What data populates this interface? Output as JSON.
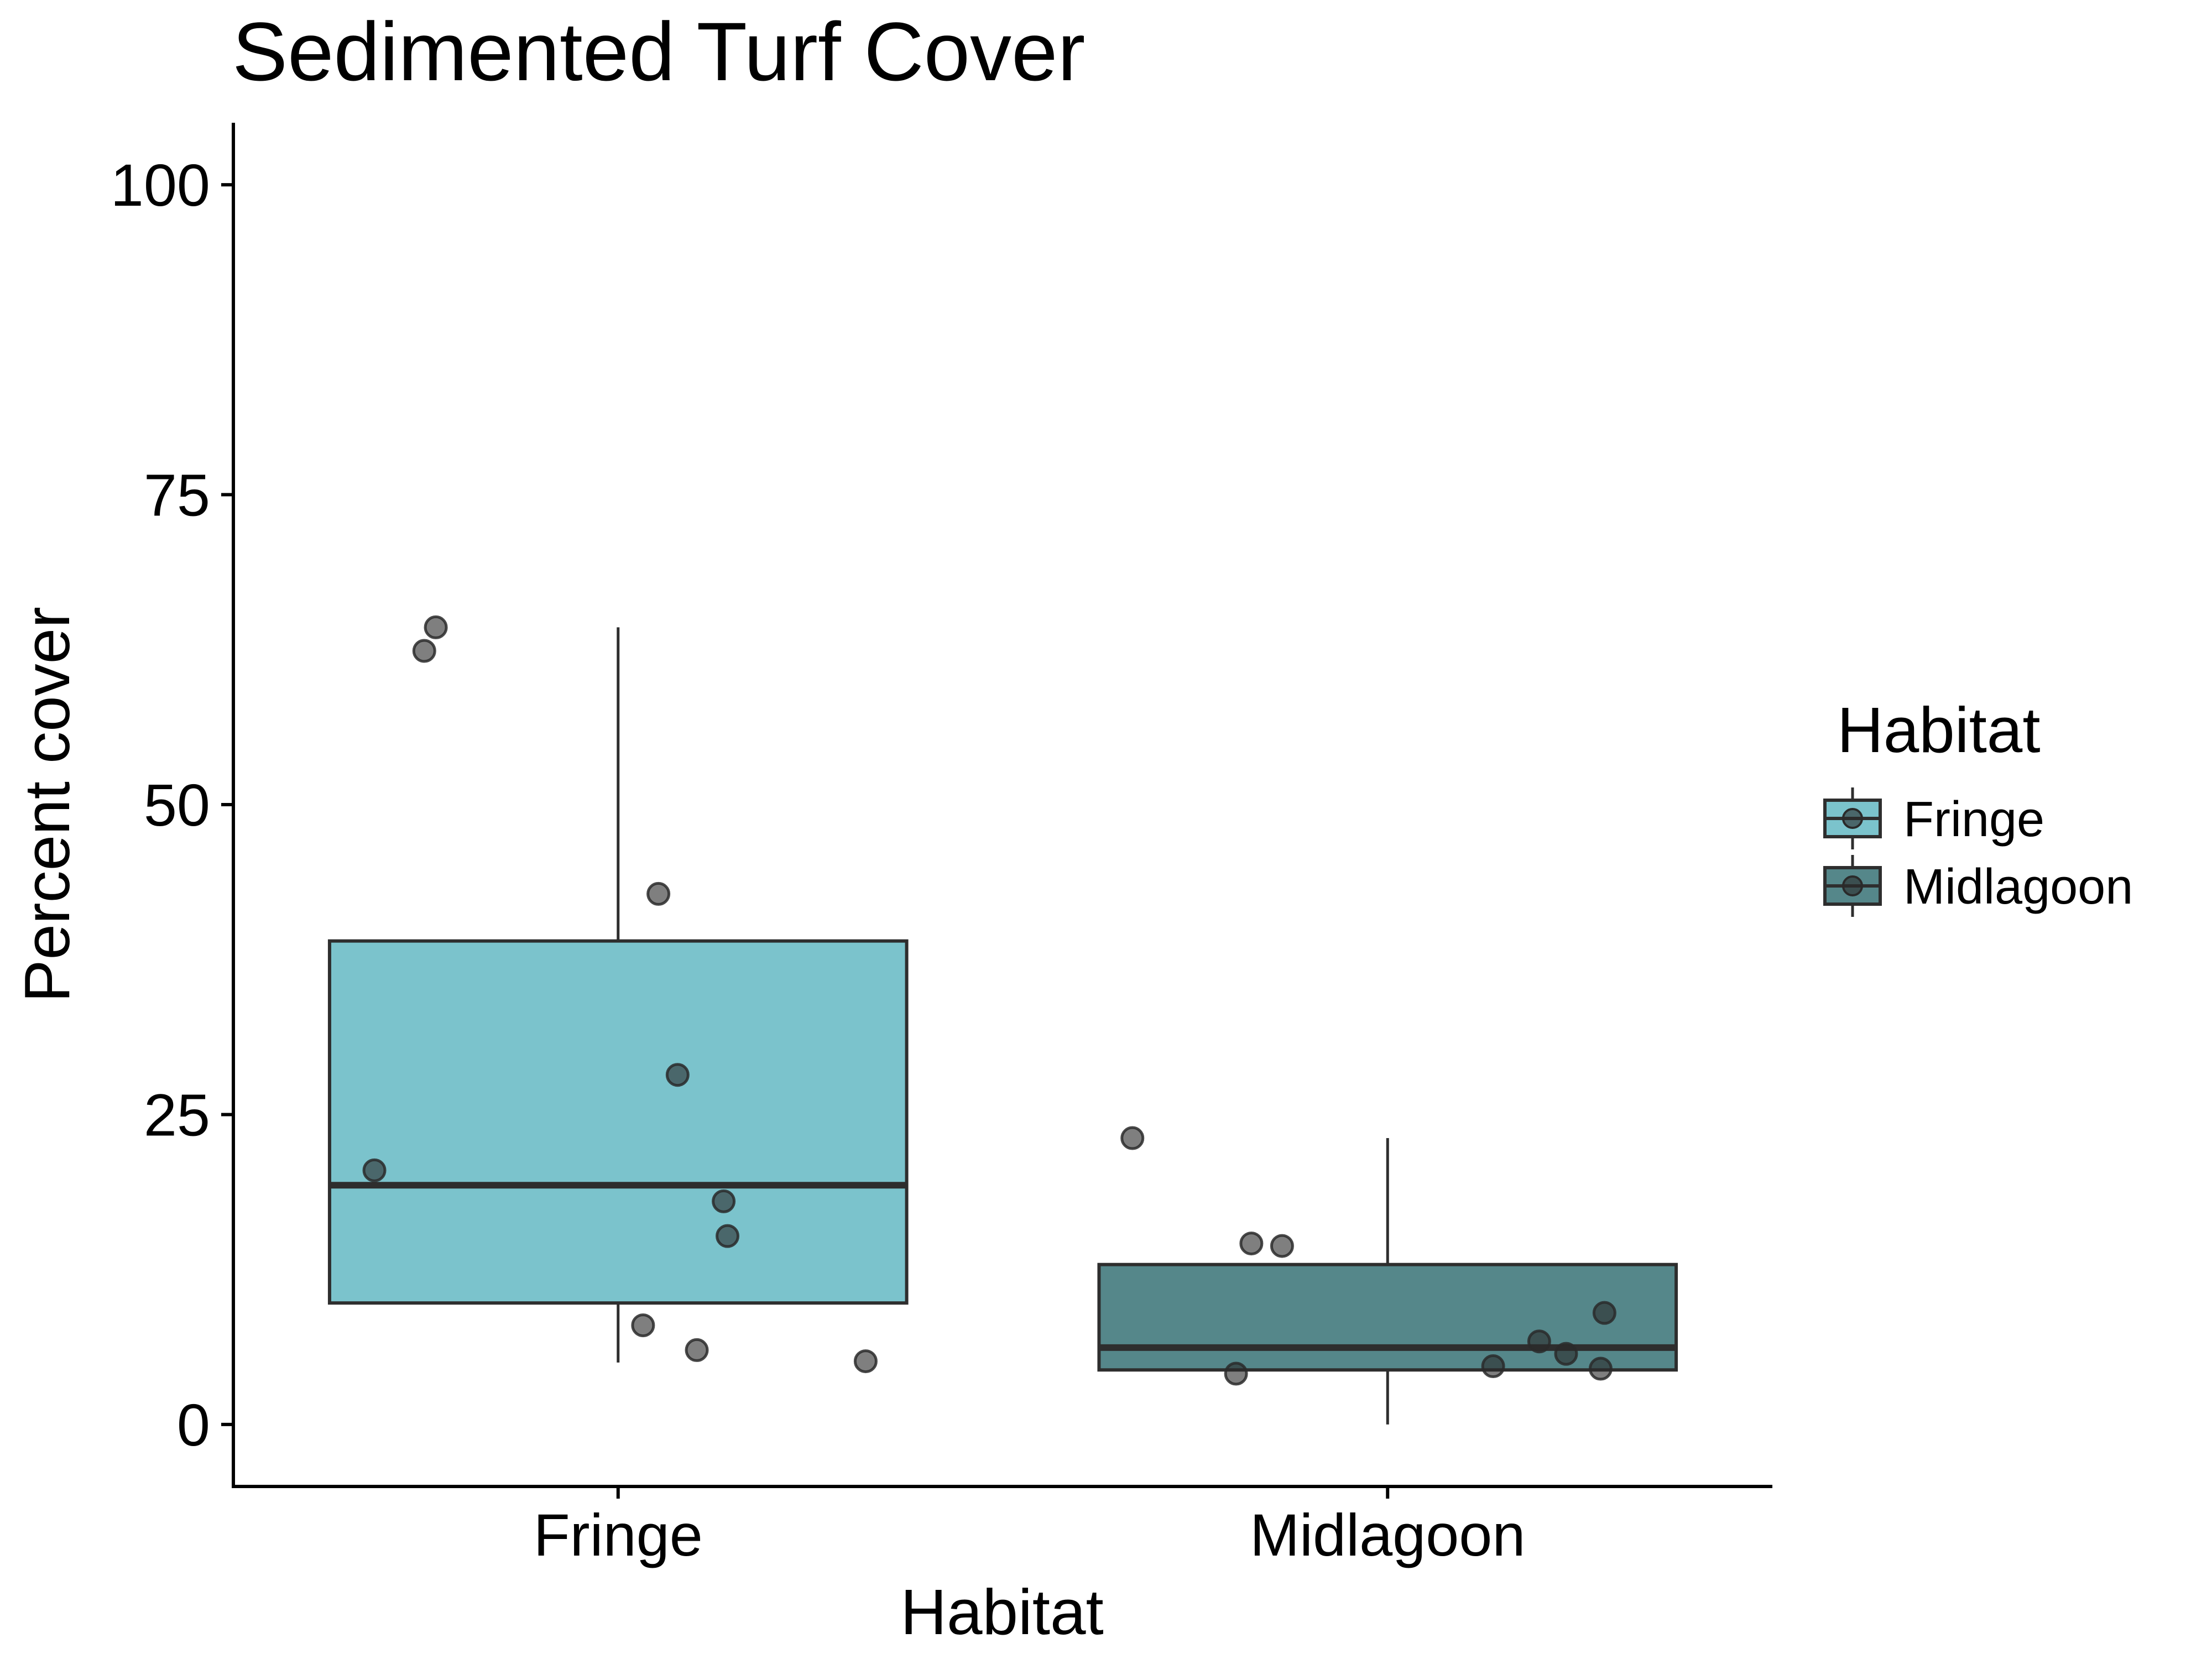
{
  "chart_data": {
    "type": "box",
    "title": "Sedimented Turf Cover",
    "xlabel": "Habitat",
    "ylabel": "Percent cover",
    "ylim": [
      -5,
      105
    ],
    "yticks": [
      0,
      25,
      50,
      75,
      100
    ],
    "categories": [
      "Fringe",
      "Midlagoon"
    ],
    "grid": false,
    "legend": {
      "title": "Habitat",
      "position": "right",
      "entries": [
        "Fringe",
        "Midlagoon"
      ]
    },
    "colors": {
      "Fringe": "#7bc3cc",
      "Midlagoon": "#55878a",
      "outline": "#2e2e2e",
      "points": "#2a2a2a"
    },
    "boxes": [
      {
        "category": "Fringe",
        "whisker_low": 5,
        "q1": 9.8,
        "median": 19.3,
        "q3": 39,
        "whisker_high": 64.3
      },
      {
        "category": "Midlagoon",
        "whisker_low": 0,
        "q1": 4.4,
        "median": 6.2,
        "q3": 12.9,
        "whisker_high": 23.1
      }
    ],
    "points": [
      {
        "category": "Fringe",
        "values": [
          64.3,
          62.4,
          42.8,
          28.2,
          20.5,
          18,
          15.2,
          8,
          6,
          5.1
        ]
      },
      {
        "category": "Midlagoon",
        "values": [
          23.1,
          14.6,
          14.4,
          9,
          6.7,
          5.7,
          4.7,
          4.5,
          4.1
        ]
      }
    ]
  }
}
